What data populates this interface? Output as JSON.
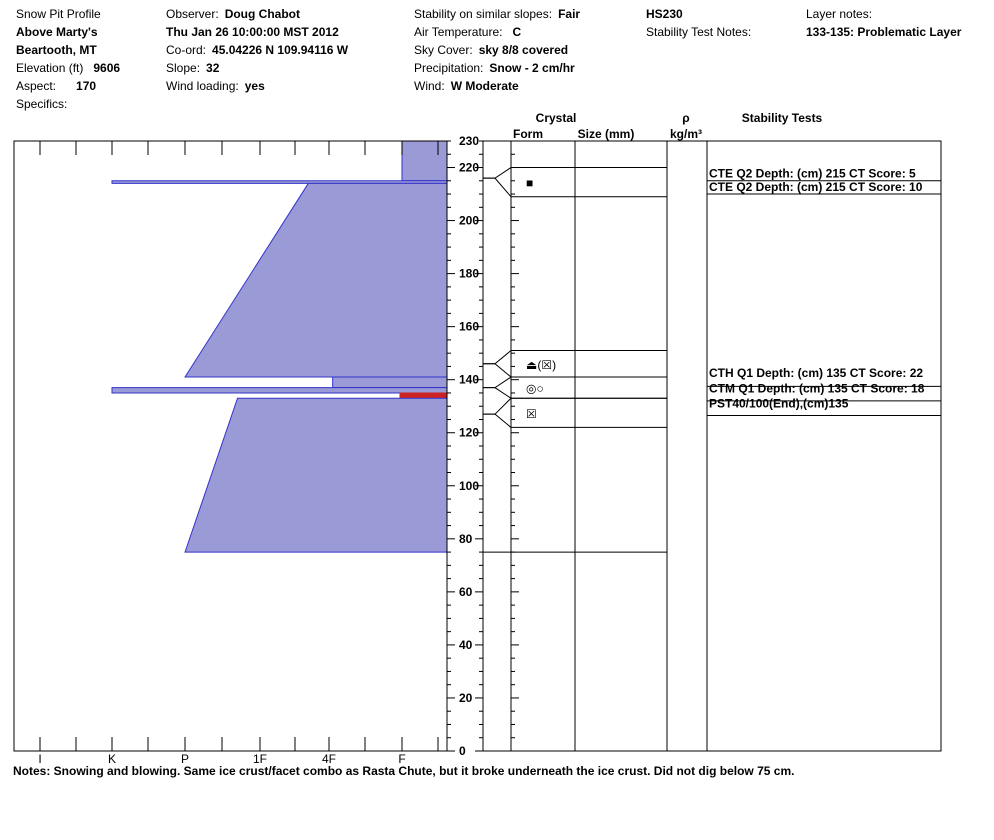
{
  "header": {
    "title": "Snow Pit Profile",
    "location": "Above Marty's",
    "region": "Beartooth, MT",
    "elevation_label": "Elevation (ft)",
    "elevation": "9606",
    "aspect_label": "Aspect:",
    "aspect": "170",
    "specifics_label": "Specifics:",
    "observer_label": "Observer:",
    "observer": "Doug Chabot",
    "datetime": "Thu Jan 26 10:00:00 MST 2012",
    "coord_label": "Co-ord:",
    "coord": "45.04226 N 109.94116 W",
    "slope_label": "Slope:",
    "slope": "32",
    "wind_loading_label": "Wind loading:",
    "wind_loading": "yes",
    "stability_label": "Stability on similar slopes:",
    "stability": "Fair",
    "air_temp_label": "Air Temperature:",
    "air_temp": "C",
    "sky_label": "Sky Cover:",
    "sky": "sky 8/8 covered",
    "precip_label": "Precipitation:",
    "precip": "Snow - 2 cm/hr",
    "wind_label": "Wind:",
    "wind": "W Moderate",
    "hs": "HS230",
    "stability_notes_label": "Stability Test Notes:",
    "layer_notes_label": "Layer notes:",
    "layer_notes": "133-135: Problematic Layer"
  },
  "columns": {
    "crystal": "Crystal",
    "form": "Form",
    "size": "Size (mm)",
    "rho": "ρ",
    "rho_unit": "kg/m³",
    "stability_tests": "Stability Tests"
  },
  "chart_data": {
    "type": "snow-pit-profile",
    "hardness_axis": {
      "labels": [
        "I",
        "K",
        "P",
        "1F",
        "4F",
        "F"
      ],
      "values": [
        6,
        5,
        4,
        3,
        2,
        1
      ]
    },
    "height_axis": {
      "range": [
        0,
        230
      ],
      "ticks": [
        0,
        20,
        40,
        60,
        80,
        100,
        120,
        140,
        160,
        180,
        200,
        220,
        230
      ],
      "minor_step": 5
    },
    "hardness_layers": [
      {
        "bottom": 215,
        "top": 230,
        "hard_bottom": 1,
        "hard_top": 1,
        "color": "#9a9ad6"
      },
      {
        "bottom": 214,
        "top": 215,
        "hard_bottom": 5,
        "hard_top": 5,
        "color": "#9a9ad6"
      },
      {
        "bottom": 141,
        "top": 214,
        "hard_bottom": 4,
        "hard_top": 2.3,
        "color": "#9a9ad6"
      },
      {
        "bottom": 137,
        "top": 141,
        "hard_bottom": 1.95,
        "hard_top": 1.95,
        "color": "#9a9ad6"
      },
      {
        "bottom": 135,
        "top": 137,
        "hard_bottom": 5,
        "hard_top": 5,
        "color": "#9a9ad6"
      },
      {
        "bottom": 133,
        "top": 135,
        "hard_bottom": 0.65,
        "hard_top": 0.65,
        "color": "#cc2222"
      },
      {
        "bottom": 75,
        "top": 133,
        "hard_bottom": 4,
        "hard_top": 3.3,
        "color": "#9a9ad6"
      }
    ],
    "crystal_layers": [
      {
        "label_pos": 216,
        "bottom": 209,
        "top": 220,
        "symbol": "■"
      },
      {
        "label_pos": 146,
        "bottom": 141,
        "top": 151,
        "symbol": "⏏(☒)"
      },
      {
        "label_pos": 137,
        "bottom": 133,
        "top": 141,
        "symbol": "◎○"
      },
      {
        "label_pos": 127,
        "bottom": 122,
        "top": 133,
        "symbol": "☒"
      }
    ],
    "pit_bottom": 75,
    "stability_tests": [
      {
        "pos": 217.7,
        "line": 215,
        "text": "CTE Q2 Depth: (cm) 215 CT Score: 5"
      },
      {
        "pos": 212.7,
        "line": 210,
        "text": "CTE Q2 Depth: (cm) 215 CT Score: 10"
      },
      {
        "pos": 142.5,
        "line": 137.5,
        "text": "CTH Q1 Depth: (cm) 135 CT Score: 22"
      },
      {
        "pos": 136.7,
        "line": 132,
        "text": "CTM Q1 Depth: (cm) 135 CT Score: 18"
      },
      {
        "pos": 131,
        "line": 126.5,
        "text": "PST40/100(End),(cm)135"
      }
    ],
    "colors": {
      "fill": "#9a9ad6",
      "stroke": "#3333cc",
      "weak": "#cc2222"
    }
  },
  "notes": "Notes:  Snowing and blowing.  Same ice crust/facet combo as Rasta Chute, but it broke underneath the ice crust.  Did not dig below 75 cm."
}
